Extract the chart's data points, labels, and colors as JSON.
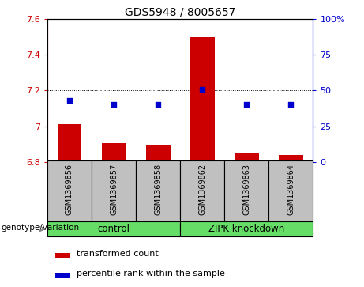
{
  "title": "GDS5948 / 8005657",
  "samples": [
    "GSM1369856",
    "GSM1369857",
    "GSM1369858",
    "GSM1369862",
    "GSM1369863",
    "GSM1369864"
  ],
  "bar_values": [
    7.01,
    6.905,
    6.893,
    7.497,
    6.855,
    6.838
  ],
  "bar_base": 6.8,
  "percentile_values": [
    43,
    40,
    40,
    51,
    40,
    40
  ],
  "bar_color": "#cc0000",
  "point_color": "#0000cc",
  "ylim_left": [
    6.8,
    7.6
  ],
  "ylim_right": [
    0,
    100
  ],
  "yticks_left": [
    6.8,
    7.0,
    7.2,
    7.4,
    7.6
  ],
  "ytick_labels_left": [
    "6.8",
    "7",
    "7.2",
    "7.4",
    "7.6"
  ],
  "yticks_right": [
    0,
    25,
    50,
    75,
    100
  ],
  "ytick_labels_right": [
    "0",
    "25",
    "50",
    "75",
    "100%"
  ],
  "grid_ticks": [
    7.0,
    7.2,
    7.4
  ],
  "group_band_color": "#c0c0c0",
  "group_green_color": "#66dd66",
  "legend_bar_label": "transformed count",
  "legend_point_label": "percentile rank within the sample",
  "xlabel_text": "genotype/variation",
  "bar_width": 0.55,
  "title_fontsize": 10,
  "tick_fontsize": 8,
  "legend_fontsize": 8,
  "sample_fontsize": 7,
  "group_fontsize": 8.5
}
